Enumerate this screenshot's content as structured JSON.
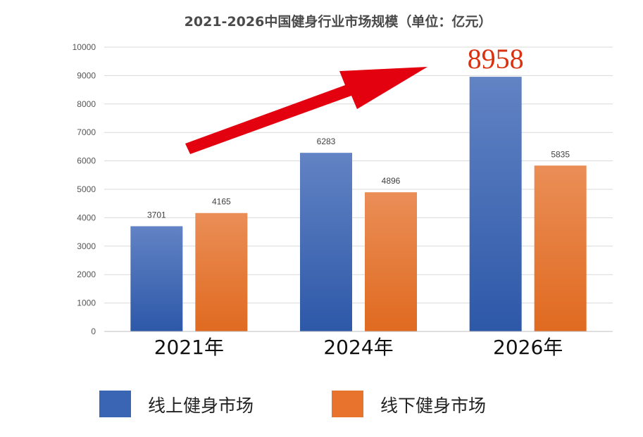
{
  "chart_data": {
    "type": "bar",
    "title": "2021-2026中国健身行业市场规模（单位：亿元）",
    "categories": [
      "2021年",
      "2024年",
      "2026年"
    ],
    "series": [
      {
        "name": "线上健身市场",
        "values": [
          3701,
          6283,
          8958
        ],
        "color": "#3a65b4"
      },
      {
        "name": "线下健身市场",
        "values": [
          4165,
          4896,
          5835
        ],
        "color": "#e8732c"
      }
    ],
    "ylim": [
      0,
      10000
    ],
    "yticks": [
      0,
      1000,
      2000,
      3000,
      4000,
      5000,
      6000,
      7000,
      8000,
      9000,
      10000
    ],
    "grid": true,
    "legend_position": "bottom",
    "highlight": {
      "series": 0,
      "category": 2,
      "label": "8958",
      "color": "#d9300f"
    },
    "annotation": {
      "type": "arrow",
      "color": "#e3000f",
      "direction": "up-right"
    }
  }
}
